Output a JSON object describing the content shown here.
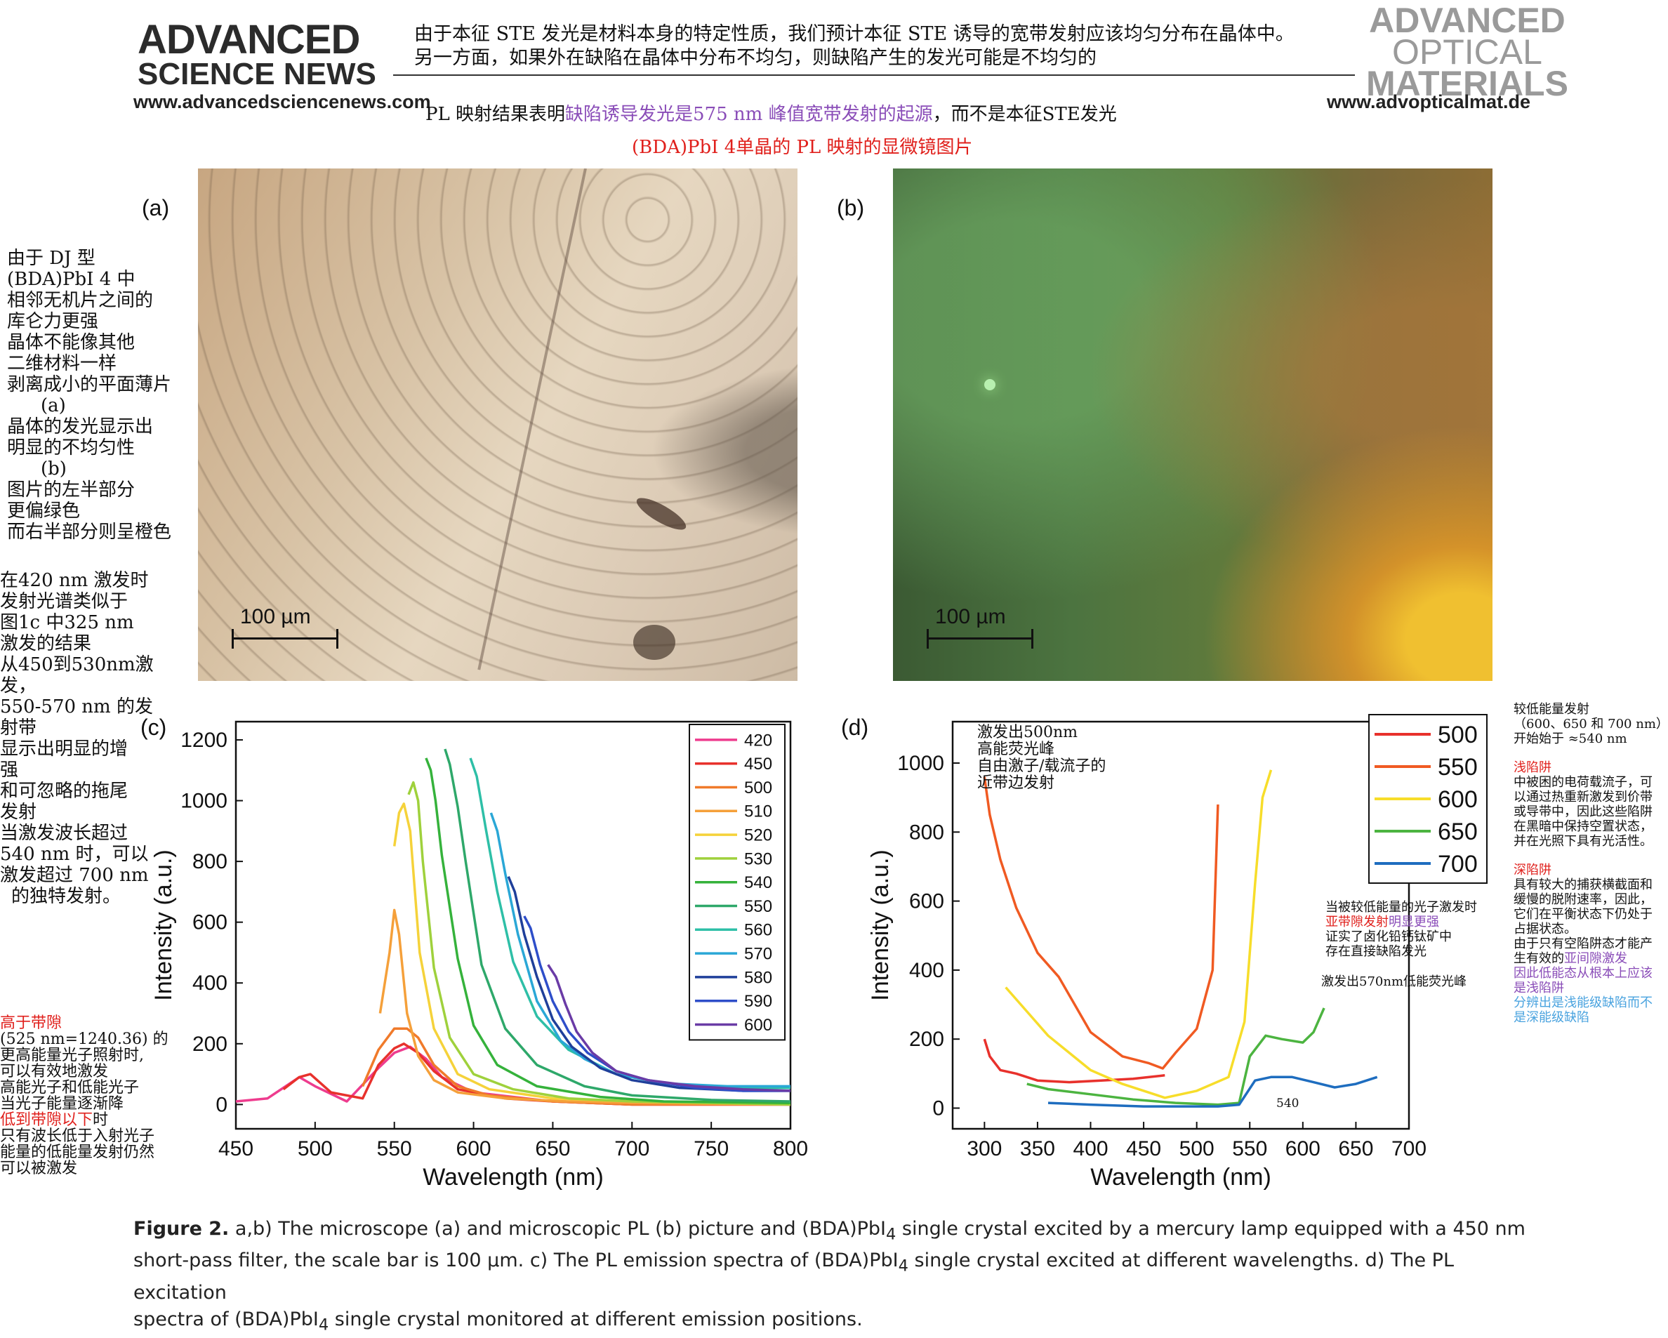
{
  "header": {
    "left_logo_line1": "ADVANCED",
    "left_logo_line2": "SCIENCE NEWS",
    "left_url": "www.advancedsciencenews.com",
    "right_logo_line1": "ADVANCED",
    "right_logo_line2": "OPTICAL",
    "right_logo_line3": "MATERIALS",
    "right_url": "www.advopticalmat.de",
    "top_note_line1": "由于本征 STE 发光是材料本身的特定性质，我们预计本征 STE 诱导的宽带发射应该均匀分布在晶体中。",
    "top_note_line2": "另一方面，如果外在缺陷在晶体中分布不均匀，则缺陷产生的发光可能是不均匀的",
    "result_note_a": "PL 映射结果表明",
    "result_note_b": "缺陷诱导发光是575 nm 峰值宽带发射的起源",
    "result_note_c": "，而不是本征STE发光",
    "subtitle_note": "(BDA)PbI 4单晶的 PL 映射的显微镜图片"
  },
  "panels": {
    "a_label": "(a)",
    "b_label": "(b)",
    "c_label": "(c)",
    "d_label": "(d)",
    "scale_a": "100 µm",
    "scale_b": "100 µm"
  },
  "left_notes": {
    "block1": [
      "由于 DJ 型",
      "(BDA)PbI 4 中",
      "相邻无机片之间的",
      "库仑力更强",
      "晶体不能像其他",
      "二维材料一样",
      "剥离成小的平面薄片",
      "(a)",
      "晶体的发光显示出",
      "明显的不均匀性",
      "(b)",
      "图片的左半部分",
      "更偏绿色",
      "而右半部分则呈橙色"
    ],
    "block2": [
      "在420 nm 激发时",
      "发射光谱类似于",
      "图1c 中325 nm",
      "激发的结果",
      "从450到530nm激",
      "发，",
      "550-570 nm 的发",
      "射带",
      "显示出明显的增",
      "强",
      "和可忽略的拖尾",
      "发射",
      "当激发波长超过",
      "540 nm 时，可以",
      "激发超过 700 nm",
      "的独特发射。"
    ],
    "block3_red": "高于带隙",
    "block3": [
      "(525 nm=1240.36) 的",
      "更高能量光子照射时,",
      "可以有效地激发",
      "高能光子和低能光子",
      "当光子能量逐渐降"
    ],
    "block3_red2": "低到带隙以下",
    "block3_tail": "时",
    "block3b": [
      "只有波长低于入射光子",
      "能量的低能量发射仍然",
      "可以被激发"
    ]
  },
  "right_notes": {
    "intro": [
      "较低能量发射",
      "（600、650 和 700 nm）",
      "开始始于 ≈540 nm"
    ],
    "shallow_title": "浅陷阱",
    "shallow": [
      "中被困的电荷载流子，可",
      "以通过热重新激发到价带",
      "或导带中，因此这些陷阱",
      "在黑暗中保持空置状态，",
      "并在光照下具有光活性。"
    ],
    "deep_title": "深陷阱",
    "deep": [
      "具有较大的捕获横截面和",
      "缓慢的脱附速率，因此，",
      "它们在平衡状态下仍处于",
      "占据状态。",
      "由于只有空陷阱态才能产",
      "生有效的"
    ],
    "deep_purple": "亚间隙激发",
    "deep_purple2": [
      "因此低能态从根本上应该",
      "是浅陷阱"
    ],
    "deep_blue": [
      "分辨出是浅能级缺陷而不",
      "是深能级缺陷"
    ]
  },
  "chart_c_notes": {},
  "chart_d_notes": {
    "note1": [
      "激发出500nm",
      "高能荧光峰",
      "自由激子/载流子的",
      "近带边发射"
    ],
    "note2_line1": "当被较低能量的光子激发时",
    "note2_red": "亚带隙发射",
    "note2_purple": "明显更强",
    "note2_rest": [
      "证实了卤化铅钙钛矿中",
      "存在直接缺陷发光"
    ],
    "note3": "激发出570nm低能荧光峰",
    "mark540": "540"
  },
  "caption": {
    "fig": "Figure 2.",
    "line1": " a,b) The microscope (a) and microscopic PL (b) picture and (BDA)PbI",
    "line1_sub": "4",
    "line1_end": " single crystal excited by a mercury lamp equipped with a 450 nm",
    "line2": "short-pass filter, the scale bar is 100 µm. c) The PL emission spectra of (BDA)PbI",
    "line2_sub": "4",
    "line2_end": " single crystal excited at different wavelengths. d) The PL excitation",
    "line3": "spectra of (BDA)PbI",
    "line3_sub": "4",
    "line3_end": " single crystal monitored at different emission positions."
  },
  "chart_data": [
    {
      "panel": "c",
      "type": "line",
      "xlabel": "Wavelength (nm)",
      "ylabel": "Intensity (a.u.)",
      "xlim": [
        450,
        800
      ],
      "ylim": [
        -80,
        1260
      ],
      "xticks": [
        450,
        500,
        550,
        600,
        650,
        700,
        750,
        800
      ],
      "yticks": [
        0,
        200,
        400,
        600,
        800,
        1000,
        1200
      ],
      "legend": "top-right",
      "series": [
        {
          "name": "420",
          "color": "#ee3c8e",
          "x": [
            450,
            470,
            490,
            500,
            520,
            540,
            550,
            560,
            570,
            580,
            600,
            650,
            700,
            750,
            800
          ],
          "y": [
            10,
            20,
            90,
            60,
            10,
            120,
            170,
            190,
            150,
            90,
            40,
            10,
            0,
            0,
            0
          ]
        },
        {
          "name": "450",
          "color": "#e8312c",
          "x": [
            480,
            490,
            497,
            510,
            530,
            540,
            550,
            556,
            565,
            575,
            590,
            620,
            650,
            700,
            750,
            800
          ],
          "y": [
            50,
            90,
            100,
            40,
            20,
            130,
            185,
            200,
            170,
            110,
            50,
            20,
            10,
            0,
            0,
            0
          ]
        },
        {
          "name": "500",
          "color": "#f07a2a",
          "x": [
            530,
            540,
            550,
            558,
            565,
            575,
            590,
            610,
            650,
            700,
            750,
            800
          ],
          "y": [
            60,
            180,
            250,
            250,
            220,
            130,
            60,
            30,
            10,
            0,
            0,
            0
          ]
        },
        {
          "name": "510",
          "color": "#f5a03a",
          "x": [
            541,
            547,
            550,
            553,
            558,
            565,
            575,
            590,
            620,
            660,
            700,
            800
          ],
          "y": [
            300,
            500,
            640,
            560,
            300,
            160,
            80,
            40,
            20,
            10,
            5,
            0
          ]
        },
        {
          "name": "520",
          "color": "#f5d23a",
          "x": [
            550,
            553,
            556,
            560,
            566,
            575,
            590,
            610,
            650,
            700,
            800
          ],
          "y": [
            850,
            960,
            990,
            900,
            500,
            250,
            100,
            50,
            20,
            10,
            0
          ]
        },
        {
          "name": "530",
          "color": "#9fd13c",
          "x": [
            559,
            562,
            565,
            568,
            575,
            585,
            600,
            625,
            660,
            700,
            800
          ],
          "y": [
            1020,
            1060,
            1000,
            800,
            450,
            220,
            100,
            50,
            20,
            10,
            0
          ]
        },
        {
          "name": "540",
          "color": "#35b23b",
          "x": [
            570,
            573,
            576,
            580,
            590,
            600,
            615,
            640,
            680,
            720,
            800
          ],
          "y": [
            1140,
            1100,
            1000,
            820,
            480,
            260,
            130,
            60,
            25,
            10,
            5
          ]
        },
        {
          "name": "550",
          "color": "#2ea86a",
          "x": [
            582,
            585,
            590,
            595,
            605,
            620,
            640,
            670,
            700,
            750,
            800
          ],
          "y": [
            1170,
            1120,
            980,
            800,
            460,
            250,
            130,
            60,
            30,
            15,
            10
          ]
        },
        {
          "name": "560",
          "color": "#2ebfa7",
          "x": [
            598,
            602,
            608,
            615,
            625,
            640,
            660,
            690,
            720,
            760,
            800
          ],
          "y": [
            1140,
            1080,
            900,
            700,
            470,
            290,
            180,
            100,
            70,
            55,
            55
          ]
        },
        {
          "name": "570",
          "color": "#2aa7d6",
          "x": [
            611,
            615,
            620,
            628,
            640,
            655,
            670,
            690,
            720,
            760,
            800
          ],
          "y": [
            960,
            900,
            760,
            560,
            340,
            210,
            150,
            100,
            70,
            60,
            60
          ]
        },
        {
          "name": "580",
          "color": "#1f3f9a",
          "x": [
            622,
            626,
            632,
            640,
            650,
            662,
            680,
            700,
            730,
            770,
            800
          ],
          "y": [
            750,
            700,
            560,
            420,
            280,
            190,
            120,
            80,
            55,
            45,
            45
          ]
        },
        {
          "name": "590",
          "color": "#2e4ec9",
          "x": [
            632,
            636,
            642,
            650,
            660,
            672,
            690,
            710,
            740,
            770,
            800
          ],
          "y": [
            620,
            580,
            460,
            340,
            240,
            170,
            110,
            80,
            55,
            45,
            45
          ]
        },
        {
          "name": "600",
          "color": "#6a3ba6",
          "x": [
            647,
            652,
            658,
            665,
            675,
            690,
            710,
            740,
            770,
            800
          ],
          "y": [
            460,
            420,
            330,
            240,
            170,
            110,
            80,
            60,
            50,
            45
          ]
        }
      ]
    },
    {
      "panel": "d",
      "type": "line",
      "xlabel": "Wavelength (nm)",
      "ylabel": "Intensity (a.u.)",
      "xlim": [
        270,
        700
      ],
      "ylim": [
        -60,
        1120
      ],
      "xticks": [
        300,
        350,
        400,
        450,
        500,
        550,
        600,
        650,
        700
      ],
      "yticks": [
        0,
        200,
        400,
        600,
        800,
        1000
      ],
      "legend": "top-right",
      "series": [
        {
          "name": "500",
          "color": "#e8312c",
          "x": [
            300,
            305,
            315,
            330,
            350,
            380,
            410,
            440,
            470
          ],
          "y": [
            200,
            150,
            110,
            100,
            80,
            75,
            80,
            85,
            95
          ]
        },
        {
          "name": "550",
          "color": "#f05a22",
          "x": [
            300,
            305,
            315,
            330,
            350,
            370,
            400,
            430,
            455,
            468,
            480,
            500,
            515,
            520
          ],
          "y": [
            960,
            850,
            720,
            580,
            450,
            380,
            220,
            150,
            130,
            115,
            160,
            230,
            400,
            880
          ]
        },
        {
          "name": "600",
          "color": "#f7dd2a",
          "x": [
            320,
            340,
            360,
            380,
            400,
            430,
            460,
            470,
            500,
            530,
            545,
            555,
            562,
            570
          ],
          "y": [
            350,
            280,
            210,
            160,
            110,
            70,
            40,
            30,
            50,
            90,
            250,
            650,
            900,
            980
          ]
        },
        {
          "name": "650",
          "color": "#4cb440",
          "x": [
            340,
            360,
            400,
            440,
            480,
            520,
            540,
            550,
            565,
            580,
            600,
            610,
            620
          ],
          "y": [
            70,
            55,
            40,
            25,
            15,
            10,
            15,
            150,
            210,
            200,
            190,
            220,
            290
          ]
        },
        {
          "name": "700",
          "color": "#1e6dbf",
          "x": [
            360,
            400,
            450,
            500,
            520,
            540,
            555,
            570,
            590,
            610,
            630,
            650,
            670
          ],
          "y": [
            15,
            10,
            5,
            5,
            5,
            10,
            80,
            90,
            90,
            75,
            60,
            70,
            90
          ]
        }
      ]
    }
  ]
}
